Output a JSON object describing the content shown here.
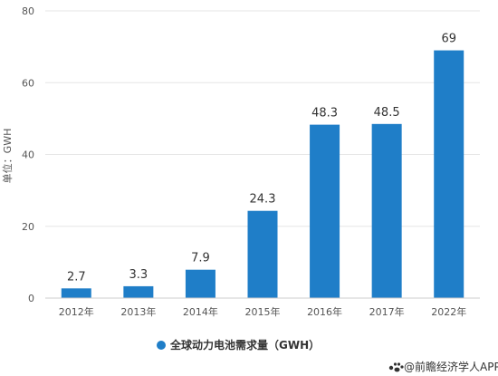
{
  "chart_data": {
    "type": "bar",
    "categories": [
      "2012年",
      "2013年",
      "2014年",
      "2015年",
      "2016年",
      "2017年",
      "2022年"
    ],
    "values": [
      2.7,
      3.3,
      7.9,
      24.3,
      48.3,
      48.5,
      69
    ],
    "data_labels": [
      "2.7",
      "3.3",
      "7.9",
      "24.3",
      "48.3",
      "48.5",
      "69"
    ],
    "ylabel": "单位：GWH",
    "ylim": [
      0,
      80
    ],
    "yticks": [
      0,
      20,
      40,
      60,
      80
    ],
    "grid": true,
    "legend_position": "bottom",
    "series": [
      {
        "name": "全球动力电池需求量（GWH）",
        "color": "#1f7ec8",
        "values": [
          2.7,
          3.3,
          7.9,
          24.3,
          48.3,
          48.5,
          69
        ]
      }
    ]
  },
  "source": {
    "text": "@前瞻经济学人APP",
    "icon": "paw-logo"
  },
  "colors": {
    "bar": "#1f7ec8",
    "grid": "#e6e6e6",
    "axis": "#cccccc"
  }
}
